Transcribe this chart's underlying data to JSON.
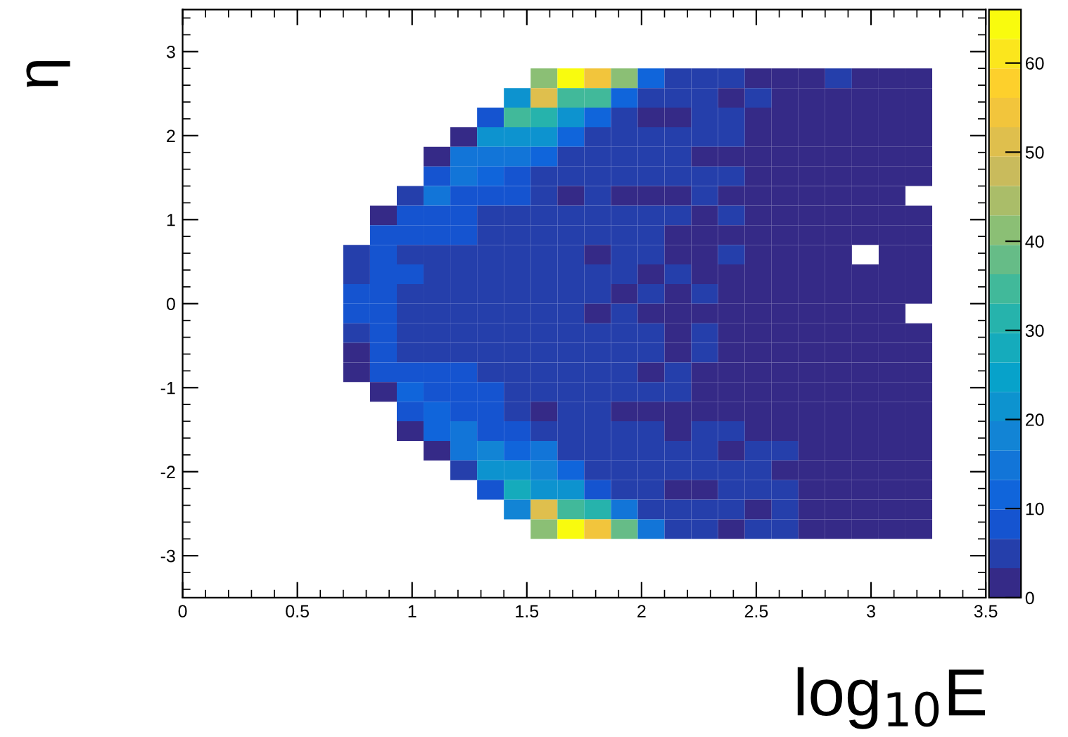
{
  "chart_data": {
    "type": "heatmap",
    "xlabel": "log$_{10}$E",
    "ylabel": "η",
    "x": [
      0.7583,
      0.875,
      0.9917,
      1.1083,
      1.225,
      1.3417,
      1.4583,
      1.575,
      1.6917,
      1.8083,
      1.925,
      2.0417,
      2.1583,
      2.275,
      2.3917,
      2.5083,
      2.625,
      2.7417,
      2.8583,
      2.975,
      3.0917,
      3.2083
    ],
    "y": [
      2.6833,
      2.45,
      2.2167,
      1.9833,
      1.75,
      1.5167,
      1.2833,
      1.05,
      0.8167,
      0.5833,
      0.35,
      0.1167,
      -0.1167,
      -0.35,
      -0.5833,
      -0.8167,
      -1.05,
      -1.2833,
      -1.5167,
      -1.75,
      -1.9833,
      -2.2167,
      -2.45,
      -2.6833
    ],
    "xlim": [
      0,
      3.5
    ],
    "ylim": [
      -3.5,
      3.5
    ],
    "xticks": [
      0,
      0.5,
      1,
      1.5,
      2,
      2.5,
      3,
      3.5
    ],
    "yticks": [
      -3,
      -2,
      -1,
      0,
      1,
      2,
      3
    ],
    "clim": [
      0,
      66
    ],
    "cticks": [
      0,
      10,
      20,
      30,
      40,
      50,
      60
    ],
    "cells": [
      [
        null,
        null,
        null,
        null,
        null,
        null,
        null,
        42,
        64,
        54,
        40,
        13,
        5,
        5,
        5,
        2,
        2,
        2,
        5,
        2,
        2,
        2
      ],
      [
        null,
        null,
        null,
        null,
        null,
        null,
        20,
        50,
        35,
        35,
        13,
        5,
        5,
        5,
        2,
        5,
        2,
        2,
        2,
        2,
        2,
        2
      ],
      [
        null,
        null,
        null,
        null,
        null,
        8,
        35,
        30,
        22,
        10,
        5,
        2,
        2,
        5,
        5,
        2,
        2,
        2,
        2,
        2,
        2,
        2
      ],
      [
        null,
        null,
        null,
        null,
        2,
        22,
        20,
        20,
        11,
        5,
        5,
        5,
        5,
        5,
        5,
        2,
        2,
        2,
        2,
        2,
        2,
        2
      ],
      [
        null,
        null,
        null,
        2,
        16,
        16,
        14,
        11,
        5,
        5,
        5,
        5,
        5,
        2,
        2,
        2,
        2,
        2,
        2,
        2,
        2,
        2
      ],
      [
        null,
        null,
        null,
        8,
        14,
        10,
        9,
        5,
        5,
        5,
        5,
        5,
        5,
        5,
        5,
        2,
        2,
        2,
        2,
        2,
        2,
        2
      ],
      [
        null,
        null,
        5,
        14,
        9,
        9,
        8,
        5,
        2,
        5,
        2,
        2,
        2,
        5,
        2,
        2,
        2,
        2,
        2,
        2,
        2,
        null
      ],
      [
        null,
        2,
        8,
        8,
        8,
        5,
        5,
        5,
        5,
        5,
        5,
        5,
        5,
        2,
        5,
        2,
        2,
        2,
        2,
        2,
        2,
        2
      ],
      [
        null,
        8,
        8,
        8,
        8,
        5,
        5,
        5,
        5,
        5,
        5,
        5,
        2,
        2,
        2,
        2,
        2,
        2,
        2,
        2,
        2,
        2
      ],
      [
        5,
        8,
        5,
        5,
        5,
        5,
        5,
        5,
        5,
        2,
        5,
        5,
        2,
        2,
        5,
        2,
        2,
        2,
        2,
        null,
        2,
        2
      ],
      [
        5,
        8,
        8,
        5,
        5,
        5,
        5,
        5,
        5,
        5,
        5,
        2,
        5,
        2,
        2,
        2,
        2,
        2,
        2,
        2,
        2,
        2
      ],
      [
        8,
        8,
        5,
        5,
        5,
        5,
        5,
        5,
        5,
        5,
        2,
        5,
        2,
        5,
        2,
        2,
        2,
        2,
        2,
        2,
        2,
        2
      ],
      [
        8,
        8,
        5,
        5,
        5,
        5,
        5,
        5,
        5,
        2,
        5,
        2,
        2,
        2,
        2,
        2,
        2,
        2,
        2,
        2,
        2,
        null
      ],
      [
        5,
        8,
        5,
        5,
        5,
        5,
        5,
        5,
        5,
        5,
        5,
        5,
        2,
        5,
        2,
        2,
        2,
        2,
        2,
        2,
        2,
        2
      ],
      [
        2,
        8,
        5,
        5,
        5,
        5,
        5,
        5,
        5,
        5,
        5,
        5,
        2,
        5,
        2,
        2,
        2,
        2,
        2,
        2,
        2,
        2
      ],
      [
        2,
        8,
        8,
        8,
        8,
        5,
        5,
        5,
        5,
        5,
        5,
        2,
        5,
        2,
        2,
        2,
        2,
        2,
        2,
        2,
        2,
        2
      ],
      [
        null,
        2,
        12,
        8,
        8,
        8,
        5,
        5,
        5,
        5,
        5,
        5,
        5,
        2,
        2,
        2,
        2,
        2,
        2,
        2,
        2,
        2
      ],
      [
        null,
        null,
        8,
        12,
        8,
        8,
        5,
        2,
        5,
        5,
        2,
        2,
        2,
        2,
        2,
        2,
        2,
        2,
        2,
        2,
        2,
        2
      ],
      [
        null,
        null,
        2,
        13,
        14,
        8,
        8,
        5,
        5,
        5,
        5,
        5,
        2,
        5,
        5,
        2,
        2,
        2,
        2,
        2,
        2,
        2
      ],
      [
        null,
        null,
        null,
        2,
        14,
        18,
        10,
        14,
        5,
        5,
        5,
        5,
        5,
        5,
        2,
        5,
        5,
        2,
        2,
        2,
        2,
        2
      ],
      [
        null,
        null,
        null,
        null,
        5,
        21,
        21,
        17,
        10,
        5,
        5,
        5,
        5,
        5,
        5,
        5,
        2,
        2,
        2,
        2,
        2,
        2
      ],
      [
        null,
        null,
        null,
        null,
        null,
        8,
        28,
        22,
        22,
        8,
        5,
        5,
        2,
        2,
        5,
        5,
        5,
        2,
        2,
        2,
        2,
        2
      ],
      [
        null,
        null,
        null,
        null,
        null,
        null,
        17,
        52,
        36,
        30,
        14,
        5,
        5,
        5,
        5,
        2,
        5,
        2,
        2,
        2,
        2,
        2
      ],
      [
        null,
        null,
        null,
        null,
        null,
        null,
        null,
        40,
        64,
        55,
        38,
        14,
        5,
        5,
        2,
        5,
        5,
        2,
        2,
        2,
        2,
        2
      ]
    ]
  }
}
